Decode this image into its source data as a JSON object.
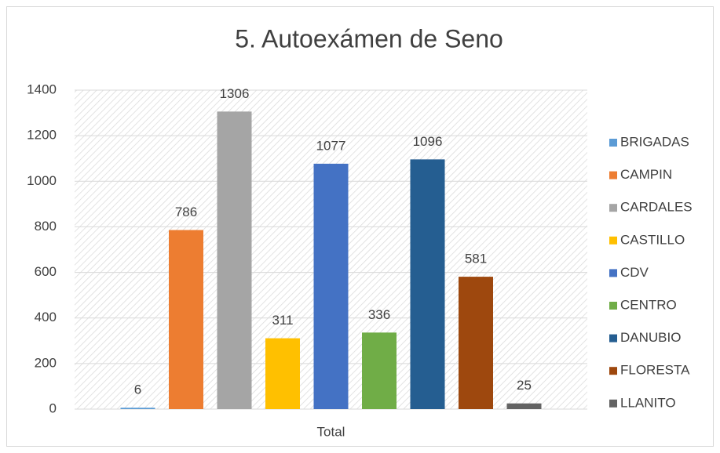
{
  "chart_data": {
    "type": "bar",
    "title": "5. Autoexámen de Seno",
    "categories": [
      "Total"
    ],
    "series": [
      {
        "name": "BRIGADAS",
        "color": "#5b9bd5",
        "values": [
          6
        ]
      },
      {
        "name": "CAMPIN",
        "color": "#ed7d31",
        "values": [
          786
        ]
      },
      {
        "name": "CARDALES",
        "color": "#a5a5a5",
        "values": [
          1306
        ]
      },
      {
        "name": "CASTILLO",
        "color": "#ffc000",
        "values": [
          311
        ]
      },
      {
        "name": "CDV",
        "color": "#4472c4",
        "values": [
          1077
        ]
      },
      {
        "name": "CENTRO",
        "color": "#70ad47",
        "values": [
          336
        ]
      },
      {
        "name": "DANUBIO",
        "color": "#255e91",
        "values": [
          1096
        ]
      },
      {
        "name": "FLORESTA",
        "color": "#9e480e",
        "values": [
          581
        ]
      },
      {
        "name": "LLANITO",
        "color": "#636363",
        "values": [
          25
        ]
      }
    ],
    "ylim": [
      0,
      1400
    ],
    "yticks": [
      0,
      200,
      400,
      600,
      800,
      1000,
      1200,
      1400
    ],
    "grid": true,
    "legend": "right"
  }
}
